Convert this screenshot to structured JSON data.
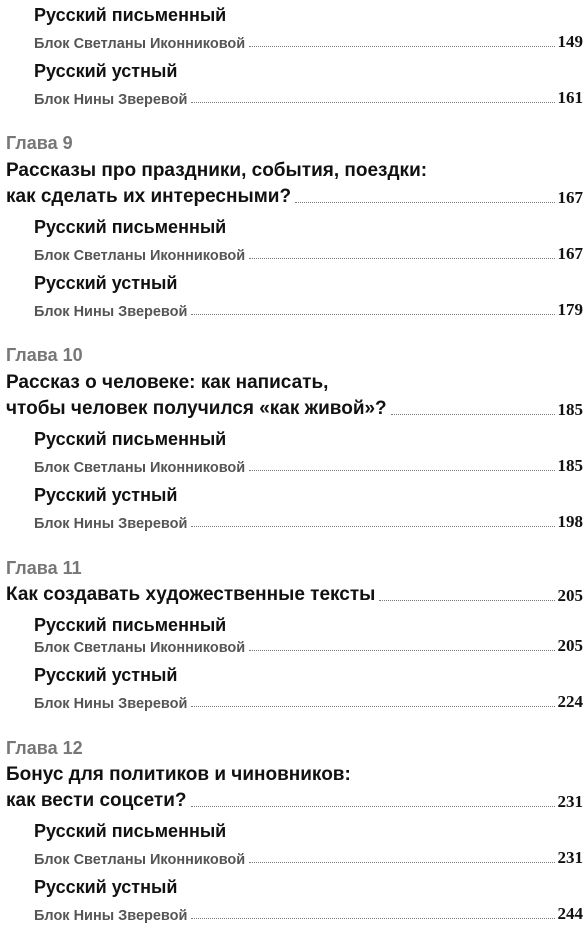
{
  "entries": [
    {
      "title": "Русский письменный"
    },
    {
      "text": "Блок Светланы Иконниковой",
      "page": "149"
    },
    {
      "title": "Русский устный"
    },
    {
      "text": "Блок Нины Зверевой",
      "page": "161"
    },
    {
      "chapter": "Глава 9"
    },
    {
      "line1": "Рассказы про праздники, события, поездки:"
    },
    {
      "line2": "как сделать их интересными?",
      "page": "167"
    },
    {
      "title": "Русский письменный"
    },
    {
      "text": "Блок Светланы Иконниковой",
      "page": "167"
    },
    {
      "title": "Русский устный"
    },
    {
      "text": "Блок Нины Зверевой",
      "page": "179"
    },
    {
      "chapter": "Глава 10"
    },
    {
      "line1": "Рассказ о человеке: как написать,"
    },
    {
      "line2": "чтобы человек получился «как живой»?",
      "page": "185"
    },
    {
      "title": "Русский письменный"
    },
    {
      "text": "Блок Светланы Иконниковой",
      "page": "185"
    },
    {
      "title": "Русский устный"
    },
    {
      "text": "Блок Нины Зверевой",
      "page": "198"
    },
    {
      "chapter": "Глава 11"
    },
    {
      "line2": "Как создавать художественные тексты",
      "page": "205"
    },
    {
      "title": "Русский письменный"
    },
    {
      "text": "Блок Светланы Иконниковой",
      "page": "205"
    },
    {
      "title": "Русский устный"
    },
    {
      "text": "Блок Нины Зверевой",
      "page": "224"
    },
    {
      "chapter": "Глава 12"
    },
    {
      "line1": "Бонус для политиков и чиновников:"
    },
    {
      "line2": "как вести соцсети?",
      "page": "231"
    },
    {
      "title": "Русский письменный"
    },
    {
      "text": "Блок Светланы Иконниковой",
      "page": "231"
    },
    {
      "title": "Русский устный"
    },
    {
      "text": "Блок Нины Зверевой",
      "page": "244"
    }
  ]
}
